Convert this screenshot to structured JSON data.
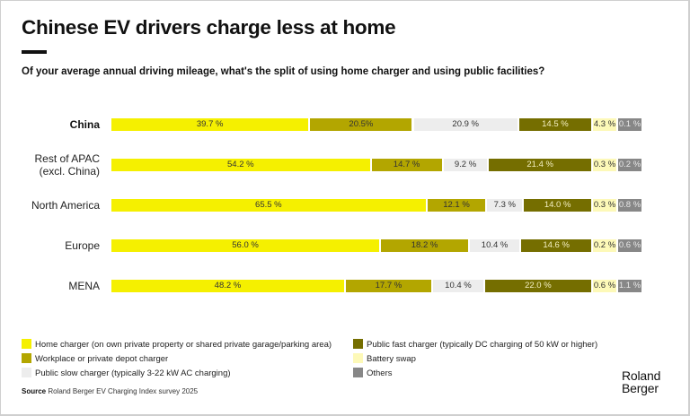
{
  "header": {
    "title": "Chinese EV drivers charge less at home",
    "subtitle": "Of your average annual driving mileage, what's the split of using home charger and using public facilities?"
  },
  "chart_data": {
    "type": "bar",
    "orientation": "horizontal",
    "stacked": true,
    "title": "Chinese EV drivers charge less at home",
    "subtitle": "Of your average annual driving mileage, what's the split of using home charger and using public facilities?",
    "unit": "%",
    "categories": [
      "China",
      "Rest of APAC (excl. China)",
      "North America",
      "Europe",
      "MENA"
    ],
    "category_lines": [
      [
        "China"
      ],
      [
        "Rest of APAC",
        "(excl. China)"
      ],
      [
        "North America"
      ],
      [
        "Europe"
      ],
      [
        "MENA"
      ]
    ],
    "highlighted_category": "China",
    "series": [
      {
        "name": "Home charger (on own private property or shared private garage/parking area)",
        "color": "#f5f000",
        "text_color": "#333333",
        "values": [
          39.7,
          54.2,
          65.5,
          56.0,
          48.2
        ]
      },
      {
        "name": "Workplace or private depot charger",
        "color": "#b3a600",
        "text_color": "#333333",
        "values": [
          20.5,
          14.7,
          12.1,
          18.2,
          17.7
        ]
      },
      {
        "name": "Public slow charger (typically 3-22 kW AC charging)",
        "color": "#ededed",
        "text_color": "#333333",
        "values": [
          20.9,
          9.2,
          7.3,
          10.4,
          10.4
        ]
      },
      {
        "name": "Public fast charger (typically DC charging of 50 kW or higher)",
        "color": "#756e00",
        "text_color": "#f3efc0",
        "values": [
          14.5,
          21.4,
          14.0,
          14.6,
          22.0
        ]
      },
      {
        "name": "Battery swap",
        "color": "#fdf9b8",
        "text_color": "#333333",
        "values": [
          4.3,
          0.3,
          0.3,
          0.2,
          0.6
        ]
      },
      {
        "name": "Others",
        "color": "#878787",
        "text_color": "#e8e8e8",
        "values": [
          0.1,
          0.2,
          0.8,
          0.6,
          1.1
        ]
      }
    ],
    "value_labels": [
      [
        "39.7 %",
        "20.5%",
        "20.9 %",
        "14.5 %",
        "4.3 %",
        "0.1 %"
      ],
      [
        "54.2 %",
        "14.7 %",
        "9.2 %",
        "21.4 %",
        "0.3 %",
        "0.2 %"
      ],
      [
        "65.5 %",
        "12.1 %",
        "7.3 %",
        "14.0 %",
        "0.3 %",
        "0.8 %"
      ],
      [
        "56.0 %",
        "18.2 %",
        "10.4 %",
        "14.6 %",
        "0.2 %",
        "0.6 %"
      ],
      [
        "48.2 %",
        "17.7 %",
        "10.4 %",
        "22.0 %",
        "0.6 %",
        "1.1 %"
      ]
    ],
    "xlim": [
      0,
      100
    ],
    "legend_position": "bottom",
    "grid": false
  },
  "footer": {
    "source_label": "Source",
    "source_text": " Roland Berger EV Charging Index survey 2025",
    "logo_line1": "Roland",
    "logo_line2": "Berger"
  }
}
